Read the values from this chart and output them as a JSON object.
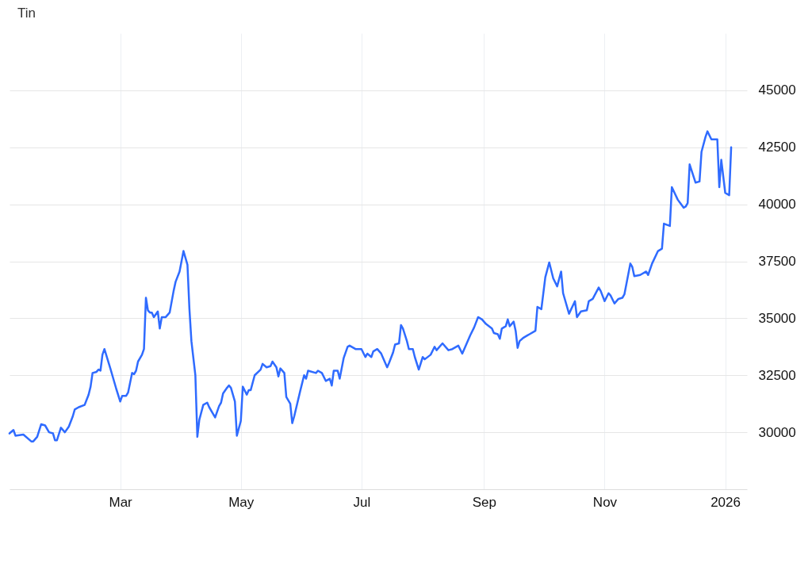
{
  "chart_data": {
    "type": "line",
    "title": "Tin",
    "x": [
      "2025-01-04",
      "2025-01-06",
      "2025-01-07",
      "2025-01-11",
      "2025-01-15",
      "2025-01-16",
      "2025-01-18",
      "2025-01-20",
      "2025-01-22",
      "2025-01-24",
      "2025-01-26",
      "2025-01-27",
      "2025-01-28",
      "2025-01-30",
      "2025-02-01",
      "2025-02-03",
      "2025-02-05",
      "2025-02-06",
      "2025-02-08",
      "2025-02-11",
      "2025-02-13",
      "2025-02-14",
      "2025-02-15",
      "2025-02-17",
      "2025-02-18",
      "2025-02-19",
      "2025-02-20",
      "2025-02-21",
      "2025-02-24",
      "2025-02-25",
      "2025-02-27",
      "2025-03-01",
      "2025-03-02",
      "2025-03-04",
      "2025-03-05",
      "2025-03-07",
      "2025-03-08",
      "2025-03-09",
      "2025-03-10",
      "2025-03-12",
      "2025-03-13",
      "2025-03-14",
      "2025-03-15",
      "2025-03-16",
      "2025-03-17",
      "2025-03-18",
      "2025-03-20",
      "2025-03-21",
      "2025-03-22",
      "2025-03-24",
      "2025-03-26",
      "2025-03-28",
      "2025-03-29",
      "2025-03-31",
      "2025-04-01",
      "2025-04-02",
      "2025-04-04",
      "2025-04-05",
      "2025-04-06",
      "2025-04-08",
      "2025-04-09",
      "2025-04-10",
      "2025-04-12",
      "2025-04-14",
      "2025-04-15",
      "2025-04-17",
      "2025-04-18",
      "2025-04-20",
      "2025-04-21",
      "2025-04-22",
      "2025-04-24",
      "2025-04-25",
      "2025-04-26",
      "2025-04-28",
      "2025-04-29",
      "2025-05-01",
      "2025-05-02",
      "2025-05-04",
      "2025-05-05",
      "2025-05-06",
      "2025-05-08",
      "2025-05-11",
      "2025-05-12",
      "2025-05-14",
      "2025-05-16",
      "2025-05-17",
      "2025-05-19",
      "2025-05-20",
      "2025-05-21",
      "2025-05-23",
      "2025-05-24",
      "2025-05-26",
      "2025-05-27",
      "2025-05-28",
      "2025-05-31",
      "2025-06-02",
      "2025-06-03",
      "2025-06-04",
      "2025-06-08",
      "2025-06-09",
      "2025-06-11",
      "2025-06-13",
      "2025-06-15",
      "2025-06-16",
      "2025-06-17",
      "2025-06-19",
      "2025-06-20",
      "2025-06-22",
      "2025-06-24",
      "2025-06-25",
      "2025-06-28",
      "2025-07-01",
      "2025-07-03",
      "2025-07-04",
      "2025-07-06",
      "2025-07-07",
      "2025-07-09",
      "2025-07-11",
      "2025-07-12",
      "2025-07-14",
      "2025-07-15",
      "2025-07-17",
      "2025-07-18",
      "2025-07-20",
      "2025-07-21",
      "2025-07-22",
      "2025-07-24",
      "2025-07-25",
      "2025-07-27",
      "2025-07-28",
      "2025-07-30",
      "2025-08-01",
      "2025-08-02",
      "2025-08-05",
      "2025-08-07",
      "2025-08-08",
      "2025-08-11",
      "2025-08-14",
      "2025-08-16",
      "2025-08-19",
      "2025-08-21",
      "2025-08-25",
      "2025-08-27",
      "2025-08-29",
      "2025-08-31",
      "2025-09-02",
      "2025-09-05",
      "2025-09-06",
      "2025-09-08",
      "2025-09-09",
      "2025-09-10",
      "2025-09-12",
      "2025-09-13",
      "2025-09-14",
      "2025-09-16",
      "2025-09-17",
      "2025-09-18",
      "2025-09-19",
      "2025-09-21",
      "2025-09-23",
      "2025-09-24",
      "2025-09-27",
      "2025-09-28",
      "2025-09-30",
      "2025-10-02",
      "2025-10-04",
      "2025-10-06",
      "2025-10-08",
      "2025-10-10",
      "2025-10-11",
      "2025-10-14",
      "2025-10-17",
      "2025-10-18",
      "2025-10-20",
      "2025-10-23",
      "2025-10-24",
      "2025-10-26",
      "2025-10-29",
      "2025-10-30",
      "2025-11-01",
      "2025-11-03",
      "2025-11-04",
      "2025-11-06",
      "2025-11-08",
      "2025-11-10",
      "2025-11-11",
      "2025-11-14",
      "2025-11-15",
      "2025-11-16",
      "2025-11-19",
      "2025-11-22",
      "2025-11-23",
      "2025-11-25",
      "2025-11-28",
      "2025-11-30",
      "2025-12-01",
      "2025-12-04",
      "2025-12-05",
      "2025-12-08",
      "2025-12-11",
      "2025-12-12",
      "2025-12-13",
      "2025-12-14",
      "2025-12-17",
      "2025-12-19",
      "2025-12-20",
      "2025-12-22",
      "2025-12-23",
      "2025-12-25",
      "2025-12-28",
      "2025-12-29",
      "2025-12-30",
      "2026-01-01",
      "2026-01-03",
      "2026-01-04"
    ],
    "series": [
      {
        "color": "#2f6bff",
        "values": [
          29950,
          30100,
          29850,
          29900,
          29600,
          29600,
          29800,
          30350,
          30300,
          30000,
          29950,
          29650,
          29650,
          30200,
          30000,
          30250,
          30700,
          31000,
          31100,
          31200,
          31650,
          32000,
          32600,
          32650,
          32750,
          32700,
          33400,
          33650,
          32800,
          32500,
          31900,
          31350,
          31600,
          31600,
          31750,
          32600,
          32550,
          32700,
          33100,
          33400,
          33650,
          35900,
          35350,
          35250,
          35250,
          35050,
          35300,
          34550,
          35050,
          35050,
          35250,
          36200,
          36600,
          37050,
          37500,
          37950,
          37350,
          35400,
          34000,
          32500,
          29800,
          30550,
          31200,
          31300,
          31100,
          30800,
          30650,
          31150,
          31300,
          31700,
          31950,
          32050,
          31950,
          31350,
          29850,
          30500,
          32000,
          31650,
          31850,
          31850,
          32500,
          32750,
          33000,
          32850,
          32900,
          33100,
          32850,
          32450,
          32800,
          32600,
          31550,
          31250,
          30400,
          30700,
          31800,
          32500,
          32350,
          32700,
          32600,
          32700,
          32600,
          32250,
          32350,
          32050,
          32700,
          32700,
          32350,
          33250,
          33750,
          33800,
          33650,
          33650,
          33300,
          33450,
          33300,
          33550,
          33650,
          33450,
          33250,
          32850,
          33050,
          33500,
          33850,
          33900,
          34700,
          34550,
          34000,
          33650,
          33650,
          33300,
          32750,
          33300,
          33200,
          33400,
          33750,
          33600,
          33900,
          33600,
          33650,
          33800,
          33450,
          34250,
          34600,
          35050,
          34950,
          34750,
          34550,
          34350,
          34300,
          34100,
          34550,
          34650,
          34950,
          34650,
          34850,
          34450,
          33700,
          34000,
          34150,
          34250,
          34300,
          34450,
          35500,
          35400,
          36800,
          37450,
          36750,
          36400,
          37050,
          36100,
          35200,
          35750,
          35050,
          35300,
          35350,
          35750,
          35850,
          36350,
          36200,
          35750,
          36100,
          36000,
          35650,
          35850,
          35900,
          36050,
          37400,
          37250,
          36850,
          36900,
          37050,
          36900,
          37400,
          37950,
          38050,
          39150,
          39050,
          40750,
          40200,
          39850,
          39900,
          40050,
          41750,
          40950,
          41000,
          42300,
          42950,
          43200,
          42850,
          42850,
          40750,
          41950,
          40500,
          40400,
          42500
        ]
      }
    ],
    "xlim": [
      "2025-01-04",
      "2026-01-12"
    ],
    "xticks": [
      {
        "value": "2025-03-01",
        "label": "Mar"
      },
      {
        "value": "2025-05-01",
        "label": "May"
      },
      {
        "value": "2025-07-01",
        "label": "Jul"
      },
      {
        "value": "2025-09-01",
        "label": "Sep"
      },
      {
        "value": "2025-11-01",
        "label": "Nov"
      },
      {
        "value": "2026-01-01",
        "label": "2026"
      }
    ],
    "ylim": [
      27500,
      47500
    ],
    "yticks": [
      30000,
      32500,
      35000,
      37500,
      40000,
      42500,
      45000
    ],
    "grid": true,
    "line_style": "solid",
    "marker": "none"
  }
}
